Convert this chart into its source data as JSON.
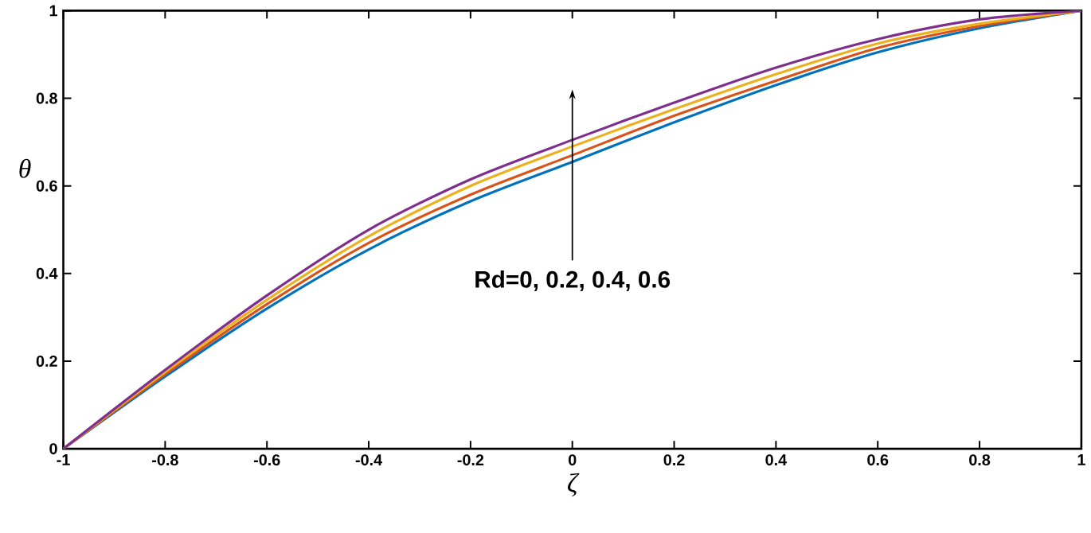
{
  "chart_data": {
    "type": "line",
    "xlabel": "ζ",
    "ylabel": "θ",
    "x": [
      -1,
      -0.8,
      -0.6,
      -0.4,
      -0.2,
      0,
      0.2,
      0.4,
      0.6,
      0.8,
      1
    ],
    "series": [
      {
        "color": "#0072bd",
        "values": [
          0,
          0.165,
          0.32,
          0.455,
          0.565,
          0.655,
          0.745,
          0.83,
          0.905,
          0.96,
          1
        ]
      },
      {
        "color": "#d95319",
        "values": [
          0,
          0.17,
          0.33,
          0.47,
          0.58,
          0.67,
          0.76,
          0.84,
          0.915,
          0.965,
          1
        ]
      },
      {
        "color": "#edb120",
        "values": [
          0,
          0.175,
          0.34,
          0.485,
          0.6,
          0.69,
          0.775,
          0.855,
          0.925,
          0.97,
          1
        ]
      },
      {
        "color": "#7e2f8e",
        "values": [
          0,
          0.18,
          0.35,
          0.5,
          0.615,
          0.705,
          0.79,
          0.87,
          0.935,
          0.98,
          1
        ]
      }
    ],
    "annotations": [
      "Rd=0, 0.2, 0.4, 0.6"
    ],
    "xlim": [
      -1,
      1
    ],
    "ylim": [
      0,
      1
    ],
    "xticks": [
      -1,
      -0.8,
      -0.6,
      -0.4,
      -0.2,
      0,
      0.2,
      0.4,
      0.6,
      0.8,
      1
    ],
    "yticks": [
      0,
      0.2,
      0.4,
      0.6,
      0.8,
      1
    ],
    "grid": false,
    "legend": false,
    "line_style": "solid"
  }
}
